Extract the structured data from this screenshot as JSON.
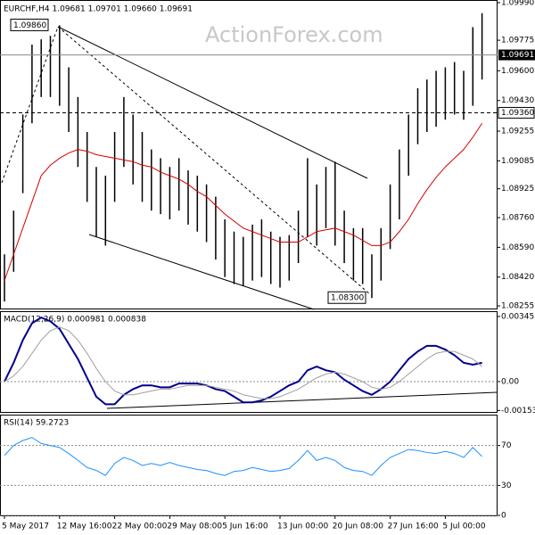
{
  "chart_data": [
    {
      "type": "ohlc",
      "header": "EURCHF,H4  1.09681 1.09701 1.09660 1.09691",
      "watermark": "ActionForex.com",
      "categories": [
        "5 May 2017",
        null,
        null,
        null,
        null,
        null,
        "12 May 16:00",
        null,
        null,
        null,
        null,
        null,
        "22 May 00:00",
        null,
        null,
        null,
        null,
        null,
        "29 May 08:00",
        null,
        null,
        null,
        null,
        null,
        "5 Jun 16:00",
        null,
        null,
        null,
        null,
        null,
        "13 Jun 00:00",
        null,
        null,
        null,
        null,
        null,
        "20 Jun 08:00",
        null,
        null,
        null,
        null,
        null,
        "27 Jun 16:00",
        null,
        null,
        null,
        null,
        null,
        "5 Jul 00:00",
        null,
        null,
        null,
        null
      ],
      "high": [
        1.0855,
        1.088,
        1.0935,
        1.0975,
        1.0978,
        1.098,
        1.0986,
        1.0962,
        1.0945,
        1.0925,
        1.0905,
        1.09,
        1.0925,
        1.0945,
        1.0935,
        1.0925,
        1.0915,
        1.091,
        1.0905,
        1.091,
        1.0903,
        1.09,
        1.0895,
        1.0888,
        1.0875,
        1.0868,
        1.0865,
        1.0872,
        1.0875,
        1.0868,
        1.0865,
        1.0866,
        1.088,
        1.091,
        1.0895,
        1.0905,
        1.0908,
        1.088,
        1.087,
        1.087,
        1.0855,
        1.087,
        1.0895,
        1.0915,
        1.0935,
        1.095,
        1.0955,
        1.096,
        1.0962,
        1.0965,
        1.096,
        1.0985,
        1.0993
      ],
      "low": [
        1.0828,
        1.0845,
        1.089,
        1.093,
        1.0945,
        1.0945,
        1.094,
        1.0925,
        1.0905,
        1.0885,
        1.0865,
        1.086,
        1.0885,
        1.0905,
        1.0895,
        1.0885,
        1.088,
        1.0878,
        1.0875,
        1.088,
        1.0872,
        1.0868,
        1.0862,
        1.0852,
        1.0842,
        1.0838,
        1.0837,
        1.084,
        1.0842,
        1.0838,
        1.0836,
        1.084,
        1.085,
        1.0865,
        1.086,
        1.087,
        1.086,
        1.085,
        1.084,
        1.0838,
        1.083,
        1.084,
        1.0858,
        1.0875,
        1.09,
        1.0918,
        1.0925,
        1.0928,
        1.0932,
        1.0935,
        1.0932,
        1.094,
        1.0955
      ],
      "bar_color": "#000000",
      "lines": [
        {
          "color": "#d40000",
          "values": [
            1.084,
            1.0855,
            1.087,
            1.0885,
            1.09,
            1.0906,
            1.091,
            1.0913,
            1.0915,
            1.0914,
            1.0912,
            1.0911,
            1.091,
            1.0909,
            1.0908,
            1.0906,
            1.0905,
            1.0902,
            1.09,
            1.0898,
            1.0895,
            1.0891,
            1.0888,
            1.0883,
            1.0878,
            1.0874,
            1.087,
            1.0868,
            1.0866,
            1.0864,
            1.0862,
            1.0862,
            1.0862,
            1.0865,
            1.0868,
            1.0869,
            1.087,
            1.0868,
            1.0866,
            1.0863,
            1.086,
            1.086,
            1.0862,
            1.0868,
            1.0875,
            1.0884,
            1.0892,
            1.0899,
            1.0905,
            1.091,
            1.0915,
            1.0922,
            1.093
          ]
        }
      ],
      "ylim": [
        1.0824,
        1.1
      ],
      "yticks": [
        {
          "value": 1.0999,
          "label": "1.09990"
        },
        1.09775,
        {
          "value": 1.096,
          "label": "1.09600"
        },
        {
          "value": 1.0943,
          "label": "1.09430"
        },
        1.09255,
        1.09085,
        1.08925,
        {
          "value": 1.0876,
          "label": "1.08760"
        },
        {
          "value": 1.0859,
          "label": "1.08590"
        },
        {
          "value": 1.0842,
          "label": "1.08420"
        },
        1.08255
      ],
      "current_price": 1.09691,
      "level": {
        "value": 1.0936,
        "label": "1.09360"
      },
      "annotations": [
        {
          "value": 1.0986,
          "label": "1.09860"
        },
        {
          "value": 1.083,
          "label": "1.08300"
        }
      ]
    },
    {
      "type": "line",
      "title": "MACD(12,26,9) 0.000981 0.000838",
      "lines": [
        {
          "color": "#00008b",
          "values": [
            0.0,
            0.001,
            0.0022,
            0.0031,
            0.0034,
            0.0032,
            0.0028,
            0.002,
            0.0012,
            0.0002,
            -0.0008,
            -0.0012,
            -0.0012,
            -0.0007,
            -0.0004,
            -0.0002,
            -0.0002,
            -0.0003,
            -0.0003,
            -0.0001,
            -0.0001,
            -0.0001,
            -0.0002,
            -0.0004,
            -0.0005,
            -0.0008,
            -0.0011,
            -0.0011,
            -0.001,
            -0.0008,
            -0.0005,
            -0.0002,
            0.0,
            0.0006,
            0.0008,
            0.0006,
            0.0005,
            0.0001,
            -0.0002,
            -0.0005,
            -0.0007,
            -0.0004,
            0.0,
            0.0006,
            0.0012,
            0.0016,
            0.0019,
            0.0019,
            0.0017,
            0.0014,
            0.001,
            0.0009,
            0.001
          ]
        },
        {
          "color": "#a0a0a0",
          "values": [
            0.0,
            0.0003,
            0.0008,
            0.0015,
            0.0022,
            0.0027,
            0.0029,
            0.0027,
            0.0022,
            0.0015,
            0.0007,
            0.0,
            -0.0005,
            -0.0007,
            -0.0007,
            -0.0006,
            -0.0005,
            -0.0004,
            -0.0004,
            -0.0003,
            -0.0002,
            -0.0002,
            -0.0002,
            -0.0003,
            -0.0004,
            -0.0005,
            -0.0007,
            -0.0008,
            -0.0009,
            -0.0009,
            -0.0008,
            -0.0006,
            -0.0004,
            -0.0001,
            0.0002,
            0.0004,
            0.0005,
            0.0004,
            0.0002,
            0.0,
            -0.0003,
            -0.0004,
            -0.0003,
            0.0,
            0.0004,
            0.0008,
            0.0012,
            0.0015,
            0.0016,
            0.0016,
            0.0014,
            0.0012,
            0.0008
          ]
        }
      ],
      "ylim": [
        -0.00161,
        0.00369
      ],
      "yticks": [
        0.003457,
        {
          "value": 0,
          "label": "0.00"
        },
        -0.001532
      ]
    },
    {
      "type": "line",
      "title": "RSI(14) 59.2723",
      "lines": [
        {
          "color": "#1e90ff",
          "values": [
            60,
            70,
            75,
            78,
            72,
            70,
            68,
            62,
            55,
            48,
            45,
            40,
            52,
            58,
            55,
            50,
            52,
            50,
            53,
            50,
            48,
            46,
            45,
            42,
            40,
            44,
            45,
            48,
            46,
            44,
            45,
            47,
            55,
            65,
            55,
            58,
            55,
            48,
            45,
            44,
            40,
            50,
            58,
            62,
            66,
            65,
            63,
            62,
            64,
            62,
            58,
            68,
            59
          ]
        }
      ],
      "ylim": [
        0,
        100
      ],
      "yticks": [
        70,
        30,
        0
      ],
      "grid": true
    }
  ]
}
